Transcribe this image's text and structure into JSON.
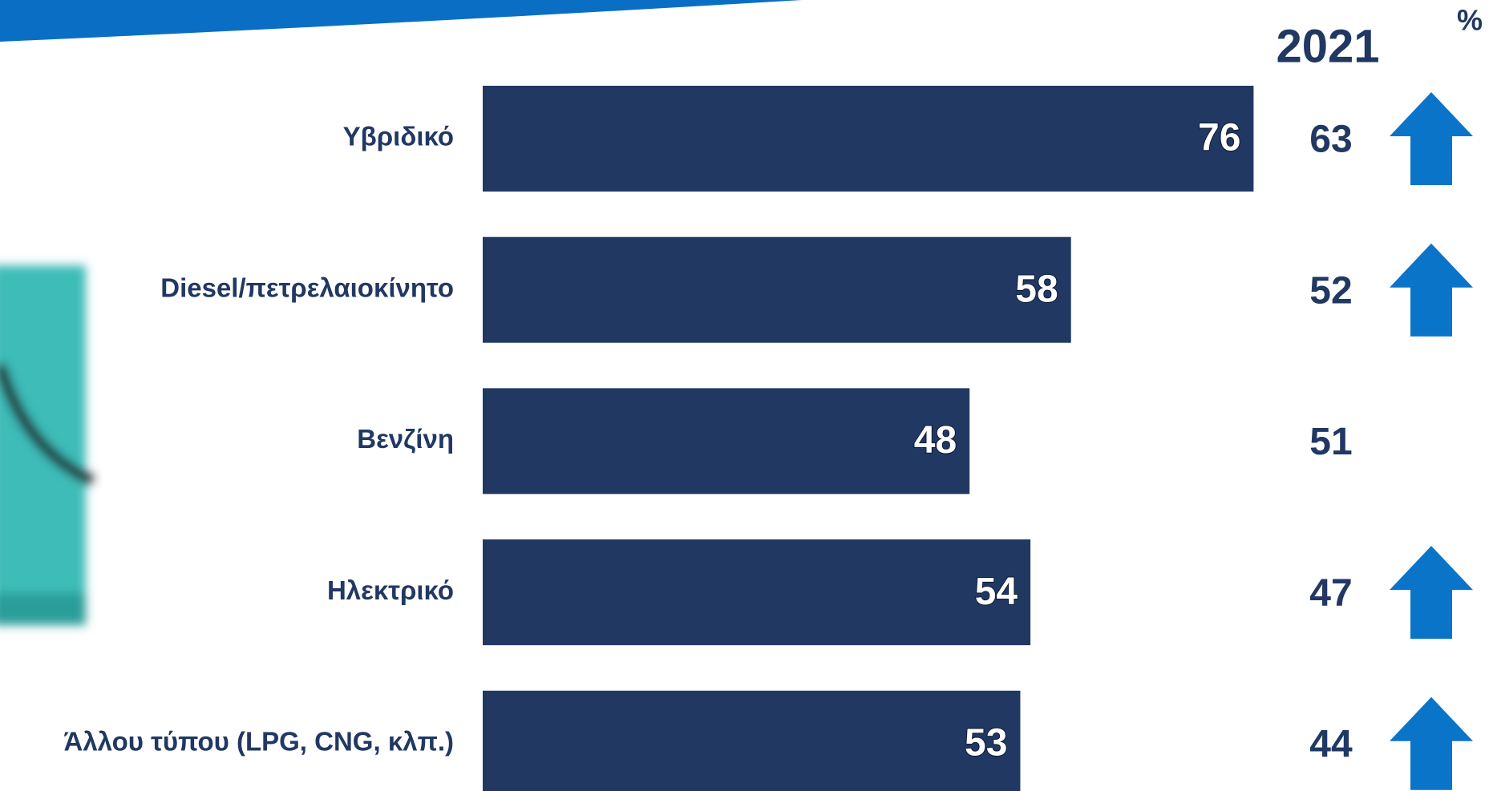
{
  "chart_data": {
    "type": "bar",
    "categories": [
      "Υβριδικό",
      "Diesel/πετρελαιοκίνητο",
      "Βενζίνη",
      "Ηλεκτρικό",
      "Άλλου τύπου (LPG, CNG, κλπ.)"
    ],
    "values": [
      76,
      58,
      48,
      54,
      53
    ],
    "color": "#213863",
    "xlim": [
      0,
      100
    ],
    "unit": "%",
    "comparison": {
      "name": "2021",
      "values": [
        63,
        52,
        51,
        47,
        44
      ]
    },
    "up_arrows": [
      true,
      true,
      false,
      true,
      true
    ],
    "arrow_color": "#0a74c8"
  }
}
